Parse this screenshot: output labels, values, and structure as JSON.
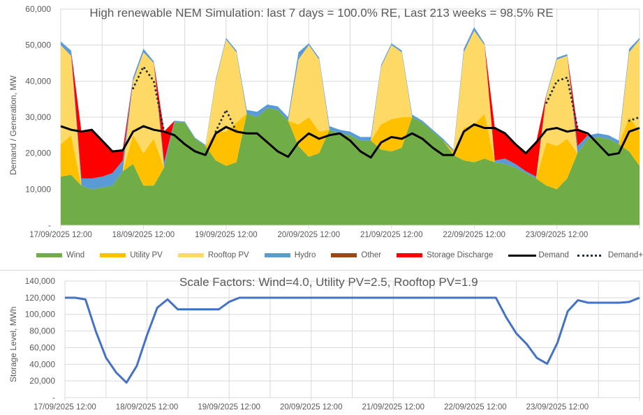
{
  "colors": {
    "wind": "#70AD47",
    "utility_pv": "#FFC000",
    "rooftop_pv": "#FFD966",
    "hydro": "#5B9BD5",
    "other": "#9E480E",
    "storage": "#FF0000",
    "demand": "#000000",
    "demand_charge": "#1F3044",
    "storage_level": "#4472C4"
  },
  "chart_data": [
    {
      "type": "area",
      "stacked": true,
      "title": "High renewable NEM Simulation: last 7 days = 100.0% RE, Last 213 weeks = 98.5% RE",
      "xlabel": "",
      "ylabel": "Demand / Generation, MW",
      "ylim": [
        0,
        60000
      ],
      "yticks": [
        0,
        10000,
        20000,
        30000,
        40000,
        50000,
        60000
      ],
      "ytick_labels": [
        "-",
        "10,000",
        "20,000",
        "30,000",
        "40,000",
        "50,000",
        "60,000"
      ],
      "x_hours_from_start": [
        0,
        3,
        6,
        9,
        12,
        15,
        18,
        21,
        24,
        27,
        30,
        33,
        36,
        39,
        42,
        45,
        48,
        51,
        54,
        57,
        60,
        63,
        66,
        69,
        72,
        75,
        78,
        81,
        84,
        87,
        90,
        93,
        96,
        99,
        102,
        105,
        108,
        111,
        114,
        117,
        120,
        123,
        126,
        129,
        132,
        135,
        138,
        141,
        144,
        147,
        150,
        153,
        156,
        159,
        162,
        165,
        168
      ],
      "xlim_hours": [
        0,
        168
      ],
      "xtick_labels": [
        "17/09/2025 12:00",
        "18/09/2025 12:00",
        "19/09/2025 12:00",
        "20/09/2025 12:00",
        "21/09/2025 12:00",
        "22/09/2025 12:00",
        "23/09/2025 12:00"
      ],
      "grid": true,
      "legend_position": "bottom",
      "series": [
        {
          "name": "Wind",
          "key": "wind",
          "values": [
            13500,
            14000,
            11000,
            10000,
            10500,
            11000,
            15000,
            17000,
            11000,
            11000,
            16000,
            28500,
            28500,
            24000,
            22000,
            18000,
            16500,
            17500,
            31000,
            30000,
            32500,
            32000,
            29000,
            22000,
            19000,
            20000,
            26500,
            25500,
            25000,
            23500,
            23500,
            21000,
            20500,
            21500,
            30000,
            28500,
            26000,
            23500,
            19500,
            18000,
            17500,
            18500,
            17500,
            17000,
            16000,
            14500,
            13000,
            11000,
            10000,
            13000,
            20000,
            24000,
            24500,
            24000,
            22500,
            20500,
            16500
          ]
        },
        {
          "name": "Utility PV",
          "key": "utility_pv",
          "values": [
            9000,
            11000,
            0,
            0,
            0,
            0,
            0,
            8000,
            9000,
            13000,
            0,
            0,
            0,
            0,
            0,
            8000,
            9500,
            11000,
            0,
            0,
            0,
            0,
            0,
            6000,
            11000,
            6000,
            0,
            0,
            0,
            0,
            0,
            7000,
            9000,
            8500,
            0,
            0,
            0,
            0,
            1000,
            9000,
            10500,
            12500,
            0,
            0,
            0,
            0,
            0,
            12000,
            12000,
            11000,
            0,
            0,
            0,
            0,
            0,
            9500,
            9500
          ]
        },
        {
          "name": "Rooftop PV",
          "key": "rooftop_pv",
          "values": [
            27500,
            22000,
            0,
            0,
            0,
            0,
            0,
            15000,
            28000,
            21000,
            0,
            0,
            0,
            0,
            0,
            14000,
            25500,
            19500,
            0,
            0,
            0,
            0,
            0,
            18000,
            20000,
            20000,
            0,
            0,
            0,
            0,
            0,
            16000,
            20500,
            18000,
            0,
            0,
            0,
            0,
            0,
            21000,
            26000,
            19000,
            0,
            0,
            0,
            0,
            0,
            13000,
            24000,
            23000,
            0,
            0,
            0,
            0,
            0,
            18000,
            25500
          ]
        },
        {
          "name": "Hydro",
          "key": "hydro",
          "values": [
            1000,
            1500,
            2000,
            3000,
            3000,
            3500,
            3000,
            1000,
            1000,
            500,
            1500,
            500,
            300,
            300,
            300,
            500,
            500,
            500,
            1000,
            1500,
            1000,
            1000,
            1000,
            2000,
            500,
            500,
            1000,
            1000,
            1000,
            1000,
            1000,
            500,
            500,
            500,
            700,
            500,
            500,
            500,
            500,
            1000,
            1000,
            500,
            500,
            1500,
            1000,
            500,
            500,
            500,
            500,
            500,
            2000,
            1000,
            1000,
            1000,
            1000,
            1000,
            500
          ]
        },
        {
          "name": "Other",
          "key": "other",
          "values": [
            0,
            0,
            0,
            0,
            0,
            0,
            0,
            0,
            0,
            0,
            0,
            0,
            0,
            0,
            0,
            0,
            0,
            0,
            0,
            0,
            0,
            0,
            0,
            0,
            0,
            0,
            0,
            0,
            0,
            0,
            0,
            0,
            0,
            0,
            0,
            0,
            0,
            0,
            0,
            0,
            0,
            0,
            0,
            0,
            0,
            0,
            0,
            0,
            0,
            0,
            0,
            0,
            0,
            0,
            0,
            0,
            0
          ]
        },
        {
          "name": "Storage Discharge",
          "key": "storage",
          "values": [
            0,
            0,
            13000,
            13500,
            10000,
            6000,
            2800,
            0,
            0,
            0,
            8500,
            0,
            0,
            0,
            0,
            0,
            0,
            0,
            0,
            0,
            0,
            0,
            0,
            0,
            0,
            0,
            0,
            0,
            0,
            0,
            0,
            0,
            0,
            0,
            0,
            0,
            0,
            0,
            0,
            0,
            0,
            0,
            9000,
            7000,
            5500,
            5000,
            9500,
            0,
            0,
            0,
            5000,
            0,
            0,
            0,
            0,
            0,
            0
          ]
        },
        {
          "name": "Demand",
          "key": "demand",
          "type": "line",
          "values": [
            27500,
            26500,
            26000,
            26500,
            23500,
            20500,
            20800,
            26000,
            27500,
            26500,
            26000,
            25000,
            22500,
            20500,
            19500,
            25500,
            27300,
            26000,
            25500,
            25500,
            23000,
            20500,
            19000,
            23000,
            25500,
            24000,
            25000,
            25500,
            23500,
            20500,
            18800,
            23000,
            24500,
            24000,
            25500,
            24000,
            21500,
            19500,
            19500,
            26000,
            28000,
            27000,
            27000,
            25500,
            22500,
            20000,
            23000,
            26500,
            27000,
            26000,
            26500,
            25500,
            22500,
            19500,
            20000,
            26000,
            27000
          ]
        },
        {
          "name": "Demand+Charge",
          "key": "demand_charge",
          "type": "line-dotted",
          "values": [
            null,
            null,
            null,
            null,
            null,
            null,
            null,
            38000,
            44000,
            40000,
            26000,
            null,
            null,
            null,
            null,
            26000,
            32000,
            26000,
            null,
            null,
            null,
            null,
            null,
            null,
            null,
            null,
            null,
            null,
            null,
            null,
            null,
            null,
            null,
            null,
            null,
            null,
            null,
            null,
            null,
            null,
            null,
            null,
            null,
            null,
            null,
            null,
            null,
            34000,
            40000,
            41000,
            27000,
            null,
            null,
            null,
            null,
            29000,
            30000
          ]
        }
      ]
    },
    {
      "type": "line",
      "title": "Scale Factors: Wind=4.0, Utility PV=2.5, Rooftop PV=1.9",
      "xlabel": "",
      "ylabel": "Storage Level, MWh",
      "ylim": [
        0,
        140000
      ],
      "yticks": [
        0,
        20000,
        40000,
        60000,
        80000,
        100000,
        120000,
        140000
      ],
      "ytick_labels": [
        "-",
        "20,000",
        "40,000",
        "60,000",
        "80,000",
        "100,000",
        "120,000",
        "140,000"
      ],
      "x_hours_from_start": [
        0,
        3,
        6,
        9,
        12,
        15,
        18,
        21,
        24,
        27,
        30,
        33,
        36,
        39,
        42,
        45,
        48,
        51,
        54,
        57,
        60,
        63,
        66,
        69,
        72,
        75,
        78,
        81,
        84,
        87,
        90,
        93,
        96,
        99,
        102,
        105,
        108,
        111,
        114,
        117,
        120,
        123,
        126,
        129,
        132,
        135,
        138,
        141,
        144,
        147,
        150,
        153,
        156,
        159,
        162,
        165,
        168
      ],
      "xlim_hours": [
        0,
        168
      ],
      "xtick_labels": [
        "17/09/2025 12:00",
        "18/09/2025 12:00",
        "19/09/2025 12:00",
        "20/09/2025 12:00",
        "21/09/2025 12:00",
        "22/09/2025 12:00",
        "23/09/2025 12:00"
      ],
      "grid": true,
      "series": [
        {
          "name": "Storage Level",
          "values": [
            120000,
            120000,
            118000,
            80000,
            48000,
            30000,
            18000,
            38000,
            75000,
            108000,
            118000,
            106000,
            106000,
            106000,
            106000,
            106000,
            115000,
            120000,
            120000,
            120000,
            120000,
            120000,
            120000,
            120000,
            120000,
            120000,
            120000,
            120000,
            120000,
            120000,
            120000,
            120000,
            120000,
            120000,
            120000,
            120000,
            120000,
            120000,
            120000,
            120000,
            120000,
            120000,
            120000,
            96600,
            77000,
            64400,
            47600,
            40600,
            65800,
            103600,
            117000,
            114000,
            114000,
            114000,
            114000,
            115000,
            120000
          ]
        }
      ]
    }
  ]
}
